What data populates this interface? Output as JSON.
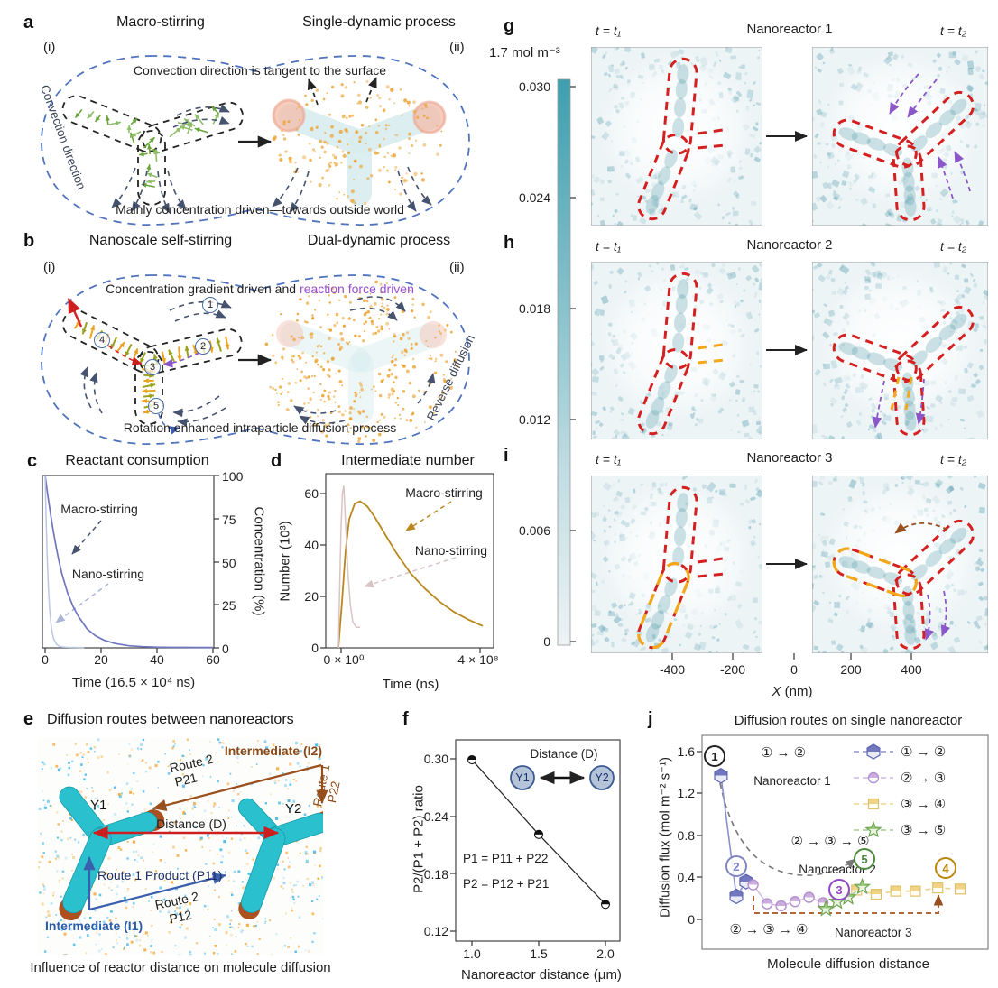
{
  "colors": {
    "boundary_blue": "#4f74bd",
    "macro_curve_c": "#6f76bd",
    "nano_curve_c": "#bcc7e3",
    "macro_curve_d": "#b9871c",
    "nano_curve_d": "#d9c3c3",
    "heat_teal": "#479eae",
    "outline_red": "#d42020",
    "dash_yellow": "#f2a818",
    "arrow_purple": "#8a56c8",
    "arrow_brown": "#9a4f1e",
    "series_blue": "#7178bf",
    "series_purple": "#cbaede",
    "series_yellow": "#f1d386",
    "series_green": "#8fc474",
    "reaction_purple": "#9a4fd0",
    "reactor_cyan": "#2bc0cd",
    "tip_brown": "#ad5020"
  },
  "figure": {
    "a": {
      "label": "a",
      "title_left": "Macro-stirring",
      "title_right": "Single-dynamic process",
      "sub_i": "(i)",
      "sub_ii": "(ii)",
      "top_note": "Convection direction is tangent to the surface",
      "bottom_note": "Mainly concentration driven—towards outside world",
      "edge_note": "Convection direction"
    },
    "b": {
      "label": "b",
      "title_left": "Nanoscale self-stirring",
      "title_right": "Dual-dynamic process",
      "sub_i": "(i)",
      "sub_ii": "(ii)",
      "note_black": "Concentration gradient driven and",
      "note_purple": "reaction force driven",
      "bottom_note": "Rotation enhanced intraparticle diffusion process",
      "edge_note": "Reverse diffusion",
      "steps": [
        "1",
        "2",
        "3",
        "4",
        "5"
      ]
    },
    "c": {
      "label": "c",
      "ann_macro": "Macro-stirring",
      "ann_nano": "Nano-stirring"
    },
    "d": {
      "label": "d",
      "ann_macro": "Macro-stirring",
      "ann_nano": "Nano-stirring"
    },
    "e": {
      "label": "e",
      "title": "Diffusion routes between nanoreactors",
      "y1": "Y1",
      "y2": "Y2",
      "i2": "Intermediate (I2)",
      "route2_top": "Route 2",
      "p21": "P21",
      "route1_right": "Route 1",
      "p22": "P22",
      "distance": "Distance (D)",
      "route1_product": "Route 1 Product (P11)",
      "route2_bottom": "Route 2",
      "p12": "P12",
      "i1": "Intermediate (I1)",
      "caption": "Influence of reactor distance on molecule diffusion"
    },
    "f": {
      "label": "f",
      "eq1": "P1 = P11 + P22",
      "eq2": "P2 = P12 + P21",
      "inset_label": "Distance (D)",
      "inset_y1": "Y1",
      "inset_y2": "Y2"
    },
    "sim": {
      "labels": [
        "g",
        "h",
        "i"
      ],
      "titles": [
        "Nanoreactor 1",
        "Nanoreactor 2",
        "Nanoreactor 3"
      ],
      "t1": "t = t₁",
      "t2": "t = t₂",
      "colorbar_top": "1.7 mol m⁻³",
      "colorbar_ticks": [
        "0.030",
        "0.024",
        "0.018",
        "0.012",
        "0.006",
        "0"
      ],
      "x_ticks": [
        "-400",
        "-200",
        "0",
        "200",
        "400"
      ],
      "x_label_var": "X",
      "x_label_unit": " (nm)"
    },
    "j": {
      "label": "j",
      "badges": {
        "b1": "1",
        "b2": "2",
        "b3": "3",
        "b5": "5",
        "b4": "4"
      },
      "ann1_seq": "① → ②",
      "ann1_name": "Nanoreactor 1",
      "ann2_seq": "② → ③ → ⑤",
      "ann2_name": "Nanoreactor 2",
      "ann3_seq": "② → ③ → ④",
      "ann3_name": "Nanoreactor 3",
      "legend": [
        {
          "seq": "① → ②"
        },
        {
          "seq": "② → ③"
        },
        {
          "seq": "③ → ④"
        },
        {
          "seq": "③ → ⑤"
        }
      ]
    }
  },
  "chart_data": [
    {
      "id": "c",
      "type": "line",
      "title": "Reactant consumption",
      "xlabel": "Time (16.5 × 10⁴ ns)",
      "ylabel": "Concentration (%)",
      "xlim": [
        0,
        62
      ],
      "ylim": [
        0,
        100
      ],
      "grid": false,
      "yaxis_side": "right",
      "x_ticks": [
        0,
        20,
        40,
        60
      ],
      "x_tick_labels": [
        "0",
        "20",
        "40",
        "60"
      ],
      "y_ticks": [
        100,
        75,
        50,
        25,
        0
      ],
      "y_tick_labels": [
        "100",
        "75",
        "50",
        "25",
        "0"
      ],
      "series": [
        {
          "name": "Macro-stirring",
          "color": "#6f76bd",
          "x": [
            0,
            1,
            2,
            3,
            4,
            5,
            6,
            8,
            10,
            12,
            15,
            18,
            21,
            25,
            30,
            35,
            40,
            45,
            50,
            55,
            60
          ],
          "y": [
            100,
            88,
            77,
            67,
            58,
            50,
            43,
            32,
            24,
            18,
            11,
            7,
            4.5,
            2.5,
            1.2,
            0.7,
            0.4,
            0.3,
            0.25,
            0.2,
            0.2
          ]
        },
        {
          "name": "Nano-stirring",
          "color": "#bcc7e3",
          "x": [
            0,
            0.4,
            0.8,
            1.2,
            1.6,
            2,
            2.5,
            3,
            4,
            5,
            6,
            8,
            10,
            12,
            14
          ],
          "y": [
            100,
            72,
            50,
            34,
            23,
            15,
            9,
            5.5,
            2.2,
            1,
            0.5,
            0.3,
            0.25,
            0.2,
            0.2
          ]
        }
      ]
    },
    {
      "id": "d",
      "type": "line",
      "title": "Intermediate number",
      "xlabel": "Time (ns)",
      "ylabel": "Number (10³)",
      "x_unit": "10⁸ ns",
      "xlim": [
        0,
        4.2
      ],
      "ylim": [
        0,
        68
      ],
      "grid": false,
      "x_tick_labels": [
        "0 × 10⁰",
        "4 × 10⁸"
      ],
      "y_ticks": [
        60,
        40,
        20,
        0
      ],
      "y_tick_labels": [
        "60",
        "40",
        "20",
        "0"
      ],
      "series": [
        {
          "name": "Macro-stirring",
          "color": "#b9871c",
          "x": [
            0,
            0.1,
            0.2,
            0.3,
            0.45,
            0.6,
            0.8,
            1.0,
            1.3,
            1.6,
            2.0,
            2.4,
            2.8,
            3.2,
            3.6,
            4.0
          ],
          "y": [
            0,
            18,
            38,
            50,
            56,
            57,
            55,
            51,
            44,
            37,
            29,
            23,
            18,
            14,
            11,
            8.5
          ]
        },
        {
          "name": "Nano-stirring",
          "color": "#d9c3c3",
          "x": [
            0,
            0.03,
            0.07,
            0.11,
            0.15,
            0.2,
            0.26,
            0.33,
            0.4,
            0.5,
            0.6
          ],
          "y": [
            0,
            20,
            45,
            60,
            63,
            48,
            30,
            17,
            10,
            8,
            8
          ]
        }
      ]
    },
    {
      "id": "f",
      "type": "scatter",
      "xlabel": "Nanoreactor distance (μm)",
      "ylabel": "P2/(P1 + P2) ratio",
      "x": [
        1.0,
        1.5,
        2.0
      ],
      "y": [
        0.299,
        0.221,
        0.148
      ],
      "marker": "half-filled-circle",
      "line": true,
      "x_tick_labels": [
        "1.0",
        "1.5",
        "2.0"
      ],
      "y_ticks": [
        0.3,
        0.24,
        0.18,
        0.12
      ],
      "y_tick_labels": [
        "0.30",
        "0.24",
        "0.18",
        "0.12"
      ]
    },
    {
      "id": "j",
      "type": "line",
      "title": "Diffusion routes on single nanoreactor",
      "xlabel": "Molecule diffusion distance",
      "ylabel": "Diffusion flux (mol m⁻² s⁻¹)",
      "ylim": [
        0,
        1.7
      ],
      "y_ticks": [
        1.6,
        1.2,
        0.8,
        0.4,
        0
      ],
      "y_tick_labels": [
        "1.6",
        "1.2",
        "0.8",
        "0.4",
        "0"
      ],
      "legend_position": "top-right",
      "series": [
        {
          "name": "① → ②",
          "marker": "hexagon",
          "color": "#7178bf",
          "x": [
            0.45,
            1.0,
            1.35
          ],
          "y": [
            1.37,
            0.22,
            0.36
          ]
        },
        {
          "name": "② → ③",
          "marker": "circle",
          "color": "#cbaede",
          "x": [
            1.6,
            2.1,
            2.6,
            3.1,
            3.6,
            4.1
          ],
          "y": [
            0.33,
            0.15,
            0.13,
            0.17,
            0.21,
            0.16
          ]
        },
        {
          "name": "③ → ④",
          "marker": "square",
          "color": "#f1d386",
          "x": [
            5.3,
            6.0,
            6.7,
            7.4,
            8.2,
            9.0
          ],
          "y": [
            0.28,
            0.24,
            0.27,
            0.27,
            0.3,
            0.29
          ]
        },
        {
          "name": "③ → ⑤",
          "marker": "star",
          "color": "#8fc474",
          "x": [
            4.2,
            4.6,
            5.0,
            5.5
          ],
          "y": [
            0.1,
            0.17,
            0.21,
            0.31
          ]
        }
      ]
    },
    {
      "id": "ghi",
      "type": "heatmap",
      "titles": [
        "Nanoreactor 1",
        "Nanoreactor 2",
        "Nanoreactor 3"
      ],
      "time_labels": [
        "t = t₁",
        "t = t₂"
      ],
      "colorbar": {
        "top_label": "1.7 mol m⁻³",
        "ticks": [
          0.03,
          0.024,
          0.018,
          0.012,
          0.006,
          0
        ]
      },
      "xlabel": "X (nm)",
      "x_ticks": [
        -400,
        -200,
        0,
        200,
        400
      ]
    }
  ]
}
